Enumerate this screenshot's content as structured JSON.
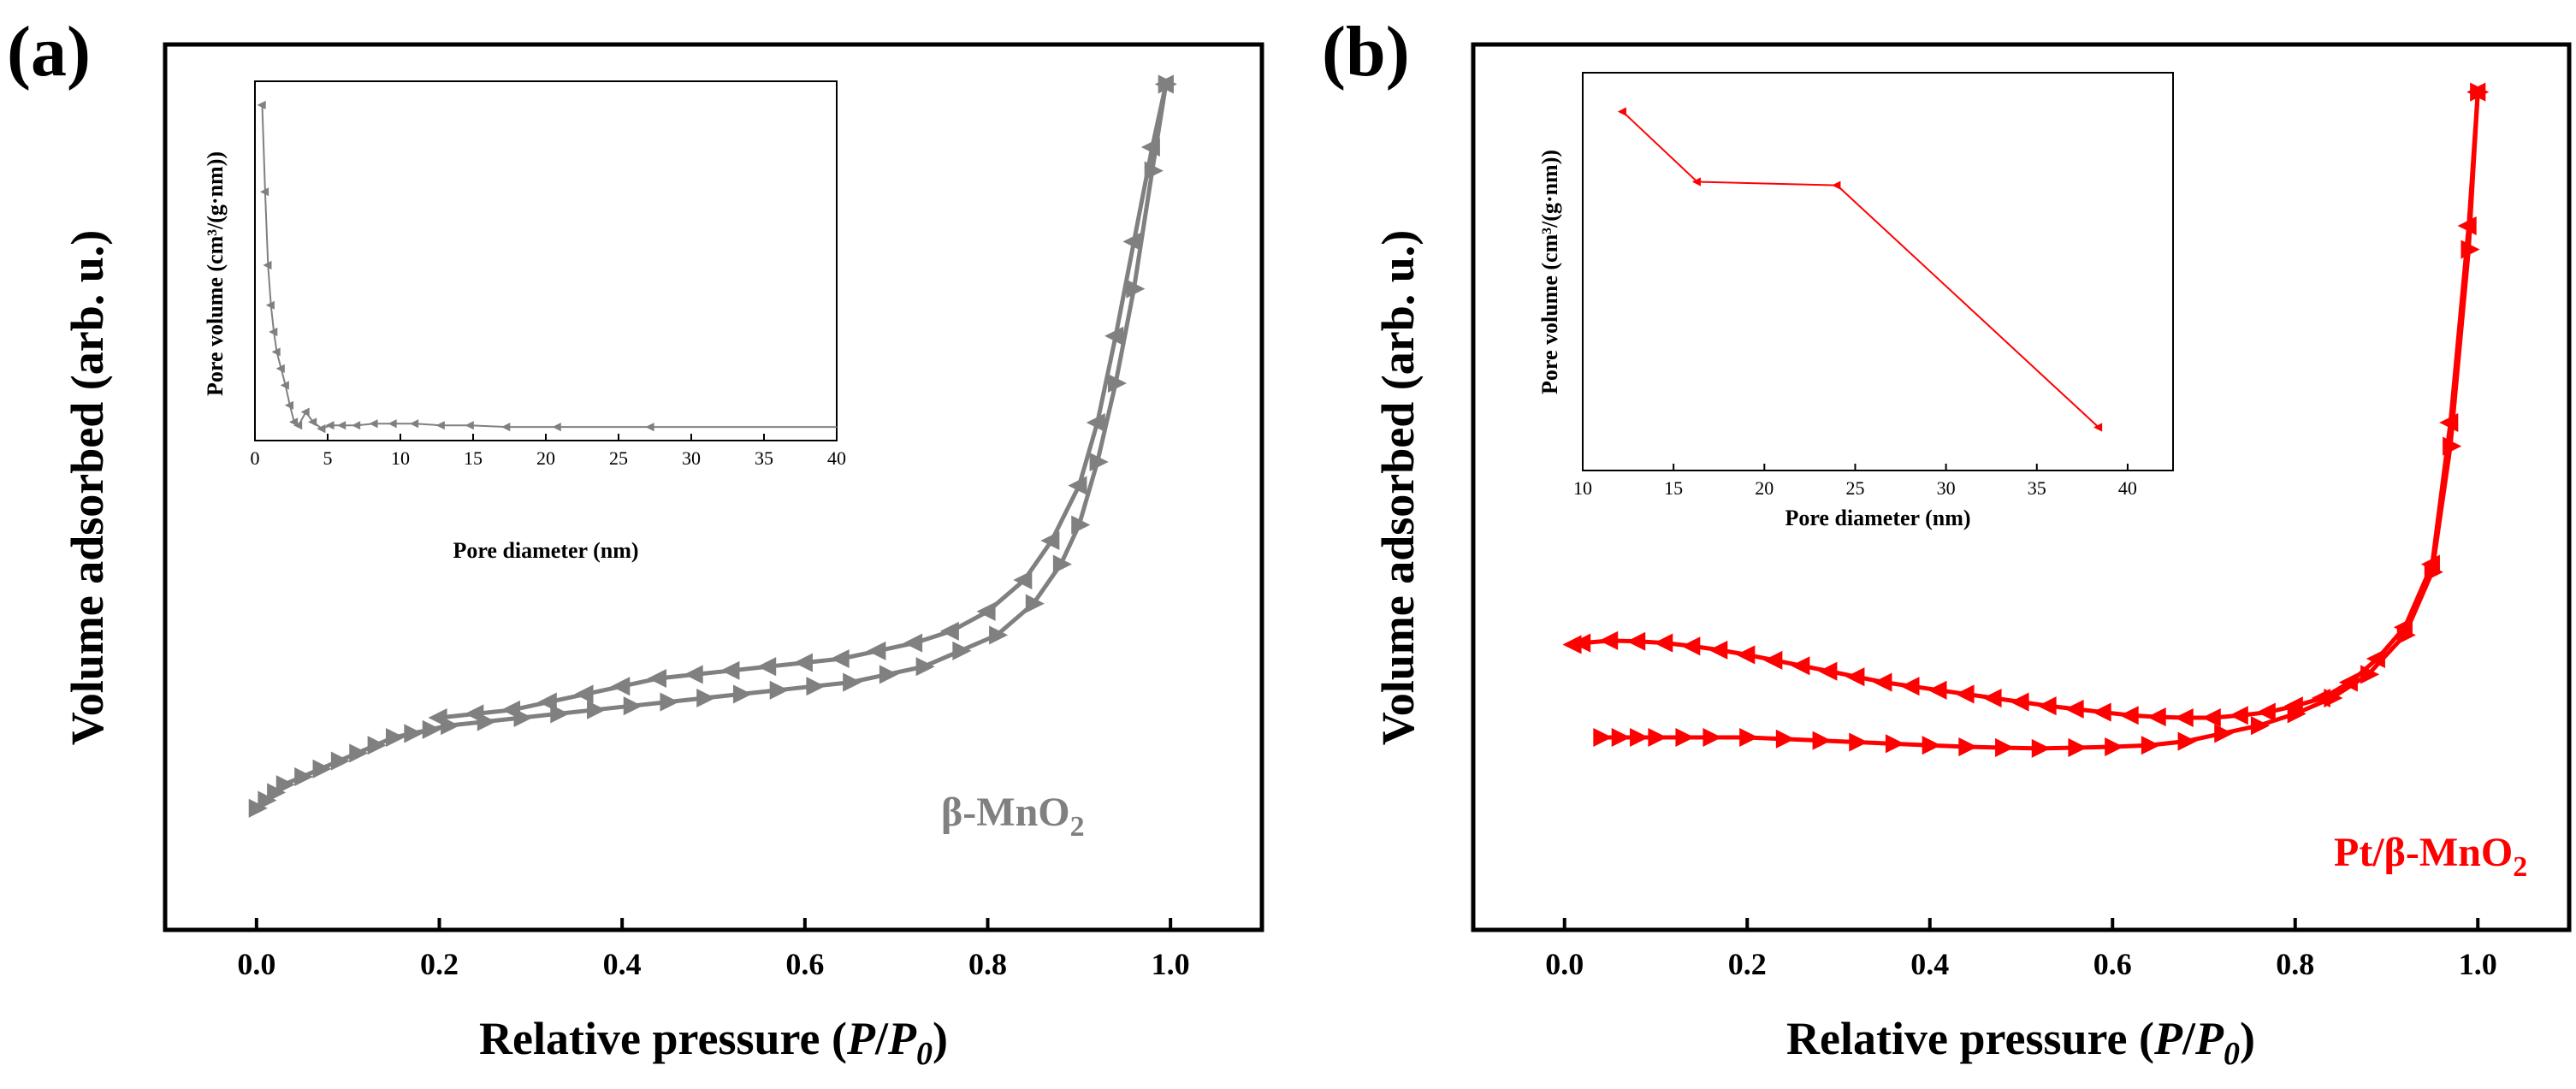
{
  "chart_data": [
    {
      "type": "line",
      "panel": "(a)",
      "color": "#808080",
      "xlabel": "Relative pressure (P/P0)",
      "xlabel_main": "Relative pressure (",
      "xlabel_italic": "P",
      "xlabel_slash": "/",
      "xlabel_italic2": "P",
      "xlabel_sub": "0",
      "xlabel_close": ")",
      "ylabel": "Volume adsorbed (arb. u.)",
      "xlim": [
        -0.1,
        1.1
      ],
      "ylim": [
        0,
        1
      ],
      "xticks": [
        "0.0",
        "0.2",
        "0.4",
        "0.6",
        "0.8",
        "1.0"
      ],
      "xtick_values": [
        0.0,
        0.2,
        0.4,
        0.6,
        0.8,
        1.0
      ],
      "series_label": "β-MnO",
      "series_label_sub": "2",
      "series": [
        {
          "name": "Adsorption",
          "x": [
            0.0,
            0.01,
            0.02,
            0.03,
            0.05,
            0.07,
            0.09,
            0.11,
            0.13,
            0.15,
            0.17,
            0.19,
            0.21,
            0.25,
            0.29,
            0.33,
            0.37,
            0.41,
            0.45,
            0.49,
            0.53,
            0.57,
            0.61,
            0.65,
            0.69,
            0.73,
            0.77,
            0.81,
            0.85,
            0.88,
            0.9,
            0.92,
            0.94,
            0.96,
            0.98,
            0.995
          ],
          "y": [
            0.06,
            0.07,
            0.08,
            0.09,
            0.1,
            0.11,
            0.12,
            0.13,
            0.14,
            0.15,
            0.155,
            0.16,
            0.165,
            0.17,
            0.175,
            0.18,
            0.185,
            0.19,
            0.195,
            0.2,
            0.205,
            0.21,
            0.215,
            0.22,
            0.23,
            0.24,
            0.26,
            0.28,
            0.32,
            0.37,
            0.42,
            0.5,
            0.6,
            0.72,
            0.87,
            0.98
          ]
        },
        {
          "name": "Desorption",
          "x": [
            0.995,
            0.98,
            0.96,
            0.94,
            0.92,
            0.9,
            0.87,
            0.84,
            0.8,
            0.76,
            0.72,
            0.68,
            0.64,
            0.6,
            0.56,
            0.52,
            0.48,
            0.44,
            0.4,
            0.36,
            0.32,
            0.28,
            0.24,
            0.2
          ],
          "y": [
            0.98,
            0.9,
            0.78,
            0.66,
            0.55,
            0.47,
            0.4,
            0.35,
            0.31,
            0.285,
            0.27,
            0.26,
            0.25,
            0.245,
            0.24,
            0.235,
            0.23,
            0.225,
            0.215,
            0.205,
            0.195,
            0.185,
            0.18,
            0.175
          ]
        }
      ],
      "inset": {
        "xlabel": "Pore diameter (nm)",
        "ylabel": "Pore volume (cm³/(g·nm))",
        "xlim": [
          0,
          40
        ],
        "xticks": [
          "0",
          "5",
          "10",
          "15",
          "20",
          "25",
          "30",
          "35",
          "40"
        ],
        "xtick_values": [
          0,
          5,
          10,
          15,
          20,
          25,
          30,
          35,
          40
        ],
        "ylim": [
          0,
          1
        ],
        "x": [
          0.5,
          0.7,
          0.9,
          1.1,
          1.3,
          1.5,
          1.8,
          2.1,
          2.4,
          2.7,
          3.0,
          3.5,
          4.0,
          4.6,
          5.2,
          6.0,
          7.0,
          8.2,
          9.5,
          11.0,
          12.8,
          14.8,
          17.3,
          20.8,
          27.2,
          40.0
        ],
        "y": [
          0.98,
          0.72,
          0.5,
          0.38,
          0.3,
          0.24,
          0.19,
          0.14,
          0.08,
          0.03,
          0.02,
          0.06,
          0.03,
          0.01,
          0.02,
          0.02,
          0.02,
          0.025,
          0.025,
          0.025,
          0.02,
          0.02,
          0.015,
          0.015,
          0.015,
          0.015
        ]
      }
    },
    {
      "type": "line",
      "panel": "(b)",
      "color": "#ff0000",
      "xlabel": "Relative pressure (P/P0)",
      "xlabel_main": "Relative pressure (",
      "xlabel_italic": "P",
      "xlabel_slash": "/",
      "xlabel_italic2": "P",
      "xlabel_sub": "0",
      "xlabel_close": ")",
      "ylabel": "Volume adsorbed (arb. u.)",
      "xlim": [
        -0.1,
        1.1
      ],
      "ylim": [
        0,
        1
      ],
      "xticks": [
        "0.0",
        "0.2",
        "0.4",
        "0.6",
        "0.8",
        "1.0"
      ],
      "xtick_values": [
        0.0,
        0.2,
        0.4,
        0.6,
        0.8,
        1.0
      ],
      "series_label": "Pt/β-MnO",
      "series_label_sub": "2",
      "series": [
        {
          "name": "Adsorption",
          "x": [
            0.04,
            0.06,
            0.08,
            0.1,
            0.13,
            0.16,
            0.2,
            0.24,
            0.28,
            0.32,
            0.36,
            0.4,
            0.44,
            0.48,
            0.52,
            0.56,
            0.6,
            0.64,
            0.68,
            0.72,
            0.76,
            0.8,
            0.84,
            0.88,
            0.92,
            0.95,
            0.97,
            0.99,
            1.0
          ],
          "y": [
            0.15,
            0.15,
            0.15,
            0.15,
            0.15,
            0.15,
            0.15,
            0.148,
            0.146,
            0.144,
            0.142,
            0.14,
            0.138,
            0.137,
            0.136,
            0.137,
            0.138,
            0.14,
            0.145,
            0.155,
            0.165,
            0.18,
            0.2,
            0.23,
            0.28,
            0.36,
            0.52,
            0.77,
            0.97
          ]
        },
        {
          "name": "Desorption",
          "x": [
            1.0,
            0.99,
            0.97,
            0.95,
            0.92,
            0.89,
            0.86,
            0.83,
            0.8,
            0.77,
            0.74,
            0.71,
            0.68,
            0.65,
            0.62,
            0.59,
            0.56,
            0.53,
            0.5,
            0.47,
            0.44,
            0.41,
            0.38,
            0.35,
            0.32,
            0.29,
            0.26,
            0.23,
            0.2,
            0.17,
            0.14,
            0.11,
            0.08,
            0.05,
            0.02,
            0.01
          ],
          "y": [
            0.97,
            0.8,
            0.55,
            0.37,
            0.29,
            0.25,
            0.22,
            0.2,
            0.19,
            0.182,
            0.178,
            0.175,
            0.175,
            0.176,
            0.178,
            0.182,
            0.186,
            0.19,
            0.195,
            0.2,
            0.205,
            0.21,
            0.215,
            0.22,
            0.227,
            0.234,
            0.241,
            0.248,
            0.255,
            0.261,
            0.266,
            0.27,
            0.272,
            0.273,
            0.27,
            0.268
          ]
        }
      ],
      "inset": {
        "xlabel": "Pore diameter (nm)",
        "ylabel": "Pore volume (cm³/(g·nm))",
        "xlim": [
          10,
          42.5
        ],
        "xticks": [
          "10",
          "15",
          "20",
          "25",
          "30",
          "35",
          "40"
        ],
        "xtick_values": [
          10,
          15,
          20,
          25,
          30,
          35,
          40
        ],
        "ylim": [
          0,
          1
        ],
        "x": [
          12.2,
          16.3,
          24.0,
          38.4
        ],
        "y": [
          0.95,
          0.75,
          0.74,
          0.05
        ]
      }
    }
  ]
}
